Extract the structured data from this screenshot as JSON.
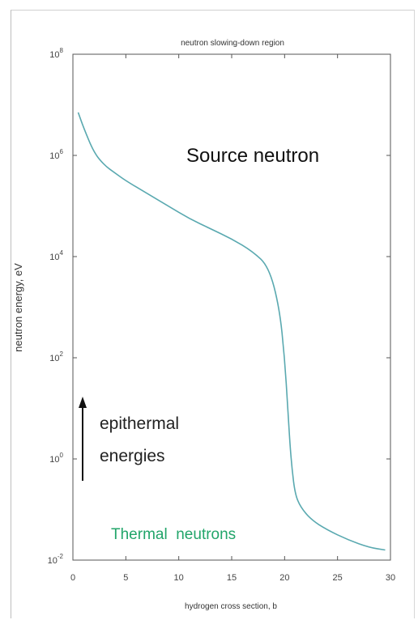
{
  "chart_data": {
    "type": "line",
    "title": "neutron slowing-down region",
    "xlabel": "hydrogen cross section, b",
    "ylabel": "neutron energy, eV",
    "xlim": [
      0,
      30
    ],
    "ylim_log10": [
      -2,
      8
    ],
    "y_scale": "log",
    "x_ticks": [
      "0",
      "5",
      "10",
      "15",
      "20",
      "25",
      "30"
    ],
    "y_tick_labels": [
      {
        "base": "10",
        "exp": "8",
        "value": 8
      },
      {
        "base": "10",
        "exp": "6",
        "value": 6
      },
      {
        "base": "10",
        "exp": "4",
        "value": 4
      },
      {
        "base": "10",
        "exp": "2",
        "value": 2
      },
      {
        "base": "10",
        "exp": "0",
        "value": 0
      },
      {
        "base": "10",
        "exp": "-2",
        "value": -2
      }
    ],
    "series": [
      {
        "color": "#5aa9b0",
        "x": [
          0.5,
          1,
          2,
          3,
          4,
          5,
          7,
          9,
          11,
          13,
          15,
          17,
          18.5,
          19.5,
          20.0,
          20.3,
          20.5,
          20.7,
          21.0,
          21.5,
          22.5,
          24,
          26,
          28,
          29.5
        ],
        "log10_y": [
          6.85,
          6.55,
          6.05,
          5.8,
          5.65,
          5.5,
          5.25,
          5.0,
          4.75,
          4.55,
          4.35,
          4.1,
          3.8,
          3.0,
          2.0,
          1.0,
          0.3,
          -0.2,
          -0.7,
          -0.95,
          -1.2,
          -1.4,
          -1.6,
          -1.75,
          -1.8
        ]
      }
    ],
    "annotations": [
      {
        "text": "Source neutron",
        "color": "#111111"
      },
      {
        "text": "epithermal",
        "color": "#222222"
      },
      {
        "text": "energies",
        "color": "#222222"
      },
      {
        "text": "Thermal  neutrons",
        "color": "#22a56a"
      }
    ],
    "grid": false,
    "legend": "none"
  }
}
